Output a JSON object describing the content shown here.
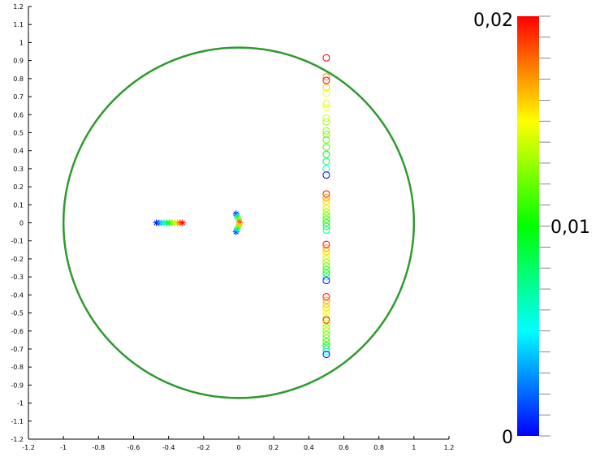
{
  "chart_data": {
    "type": "scatter",
    "title": "",
    "xlabel": "",
    "ylabel": "",
    "xlim": [
      -1.2,
      1.2
    ],
    "ylim": [
      -1.2,
      1.2
    ],
    "x_ticks": [
      "-1.2",
      "-1",
      "-0.8",
      "-0.6",
      "-0.4",
      "-0.2",
      "0",
      "0.2",
      "0.4",
      "0.6",
      "0.8",
      "1",
      "1.2"
    ],
    "y_ticks": [
      "1.2",
      "1.1",
      "1",
      "0.9",
      "0.8",
      "0.7",
      "0.6",
      "0.5",
      "0.4",
      "0.3",
      "0.2",
      "0.1",
      "0",
      "-0.1",
      "-0.2",
      "-0.3",
      "-0.4",
      "-0.5",
      "-0.6",
      "-0.7",
      "-0.8",
      "-0.9",
      "-1",
      "-1.1",
      "-1.2"
    ],
    "grid": false,
    "unit_circle": {
      "center": [
        0,
        0
      ],
      "radius": 1,
      "color": "#2e9a2e"
    },
    "colorbar": {
      "min_label": "0",
      "mid_label": "0,01",
      "max_label": "0,02",
      "colors": [
        "#0000ff",
        "#00ffff",
        "#00ff00",
        "#ffff00",
        "#ff0000"
      ]
    },
    "series": [
      {
        "marker": "star",
        "points": [
          {
            "x": -0.47,
            "y": 0.0,
            "t": 0.0
          },
          {
            "x": -0.455,
            "y": 0.0,
            "t": 0.002
          },
          {
            "x": -0.44,
            "y": 0.0,
            "t": 0.004
          },
          {
            "x": -0.425,
            "y": 0.0,
            "t": 0.006
          },
          {
            "x": -0.41,
            "y": 0.0,
            "t": 0.008
          },
          {
            "x": -0.395,
            "y": 0.0,
            "t": 0.01
          },
          {
            "x": -0.38,
            "y": 0.0,
            "t": 0.012
          },
          {
            "x": -0.365,
            "y": 0.0,
            "t": 0.014
          },
          {
            "x": -0.35,
            "y": 0.0,
            "t": 0.016
          },
          {
            "x": -0.335,
            "y": 0.0,
            "t": 0.018
          },
          {
            "x": -0.32,
            "y": 0.0,
            "t": 0.02
          },
          {
            "x": -0.015,
            "y": 0.05,
            "t": 0.0
          },
          {
            "x": -0.012,
            "y": 0.042,
            "t": 0.003
          },
          {
            "x": -0.008,
            "y": 0.034,
            "t": 0.006
          },
          {
            "x": -0.004,
            "y": 0.026,
            "t": 0.009
          },
          {
            "x": 0.0,
            "y": 0.018,
            "t": 0.012
          },
          {
            "x": 0.003,
            "y": 0.01,
            "t": 0.016
          },
          {
            "x": 0.005,
            "y": 0.0,
            "t": 0.02
          },
          {
            "x": -0.015,
            "y": -0.05,
            "t": 0.0
          },
          {
            "x": -0.012,
            "y": -0.042,
            "t": 0.003
          },
          {
            "x": -0.008,
            "y": -0.034,
            "t": 0.006
          },
          {
            "x": -0.004,
            "y": -0.026,
            "t": 0.009
          },
          {
            "x": 0.0,
            "y": -0.018,
            "t": 0.012
          },
          {
            "x": 0.003,
            "y": -0.01,
            "t": 0.016
          }
        ]
      },
      {
        "marker": "circle",
        "points": [
          {
            "x": 0.5,
            "y": 0.915,
            "t": 0.02
          },
          {
            "x": 0.5,
            "y": 0.81,
            "t": 0.017
          },
          {
            "x": 0.5,
            "y": 0.79,
            "t": 0.02
          },
          {
            "x": 0.5,
            "y": 0.75,
            "t": 0.016
          },
          {
            "x": 0.5,
            "y": 0.72,
            "t": 0.015
          },
          {
            "x": 0.5,
            "y": 0.66,
            "t": 0.014
          },
          {
            "x": 0.5,
            "y": 0.64,
            "t": 0.015
          },
          {
            "x": 0.5,
            "y": 0.58,
            "t": 0.014
          },
          {
            "x": 0.5,
            "y": 0.56,
            "t": 0.013
          },
          {
            "x": 0.5,
            "y": 0.51,
            "t": 0.013
          },
          {
            "x": 0.5,
            "y": 0.49,
            "t": 0.012
          },
          {
            "x": 0.5,
            "y": 0.46,
            "t": 0.012
          },
          {
            "x": 0.5,
            "y": 0.42,
            "t": 0.011
          },
          {
            "x": 0.5,
            "y": 0.38,
            "t": 0.01
          },
          {
            "x": 0.5,
            "y": 0.34,
            "t": 0.008
          },
          {
            "x": 0.5,
            "y": 0.3,
            "t": 0.006
          },
          {
            "x": 0.5,
            "y": 0.265,
            "t": 0.0
          },
          {
            "x": 0.5,
            "y": 0.16,
            "t": 0.02
          },
          {
            "x": 0.5,
            "y": 0.14,
            "t": 0.017
          },
          {
            "x": 0.5,
            "y": 0.12,
            "t": 0.016
          },
          {
            "x": 0.5,
            "y": 0.1,
            "t": 0.015
          },
          {
            "x": 0.5,
            "y": 0.08,
            "t": 0.014
          },
          {
            "x": 0.5,
            "y": 0.06,
            "t": 0.013
          },
          {
            "x": 0.5,
            "y": 0.04,
            "t": 0.012
          },
          {
            "x": 0.5,
            "y": 0.02,
            "t": 0.011
          },
          {
            "x": 0.5,
            "y": 0.0,
            "t": 0.01
          },
          {
            "x": 0.5,
            "y": -0.02,
            "t": 0.009
          },
          {
            "x": 0.5,
            "y": -0.04,
            "t": 0.007
          },
          {
            "x": 0.5,
            "y": -0.12,
            "t": 0.02
          },
          {
            "x": 0.5,
            "y": -0.14,
            "t": 0.017
          },
          {
            "x": 0.5,
            "y": -0.16,
            "t": 0.016
          },
          {
            "x": 0.5,
            "y": -0.18,
            "t": 0.015
          },
          {
            "x": 0.5,
            "y": -0.2,
            "t": 0.014
          },
          {
            "x": 0.5,
            "y": -0.22,
            "t": 0.013
          },
          {
            "x": 0.5,
            "y": -0.24,
            "t": 0.012
          },
          {
            "x": 0.5,
            "y": -0.26,
            "t": 0.011
          },
          {
            "x": 0.5,
            "y": -0.28,
            "t": 0.009
          },
          {
            "x": 0.5,
            "y": -0.3,
            "t": 0.006
          },
          {
            "x": 0.5,
            "y": -0.32,
            "t": 0.0
          },
          {
            "x": 0.5,
            "y": -0.41,
            "t": 0.02
          },
          {
            "x": 0.5,
            "y": -0.43,
            "t": 0.017
          },
          {
            "x": 0.5,
            "y": -0.45,
            "t": 0.016
          },
          {
            "x": 0.5,
            "y": -0.47,
            "t": 0.016
          },
          {
            "x": 0.5,
            "y": -0.49,
            "t": 0.015
          },
          {
            "x": 0.5,
            "y": -0.51,
            "t": 0.015
          },
          {
            "x": 0.5,
            "y": -0.53,
            "t": 0.014
          },
          {
            "x": 0.5,
            "y": -0.54,
            "t": 0.02
          },
          {
            "x": 0.5,
            "y": -0.56,
            "t": 0.014
          },
          {
            "x": 0.5,
            "y": -0.58,
            "t": 0.013
          },
          {
            "x": 0.5,
            "y": -0.6,
            "t": 0.013
          },
          {
            "x": 0.5,
            "y": -0.62,
            "t": 0.012
          },
          {
            "x": 0.5,
            "y": -0.64,
            "t": 0.012
          },
          {
            "x": 0.5,
            "y": -0.66,
            "t": 0.011
          },
          {
            "x": 0.5,
            "y": -0.68,
            "t": 0.01
          },
          {
            "x": 0.5,
            "y": -0.7,
            "t": 0.008
          },
          {
            "x": 0.5,
            "y": -0.715,
            "t": 0.005
          },
          {
            "x": 0.5,
            "y": -0.73,
            "t": 0.0
          }
        ]
      }
    ]
  }
}
